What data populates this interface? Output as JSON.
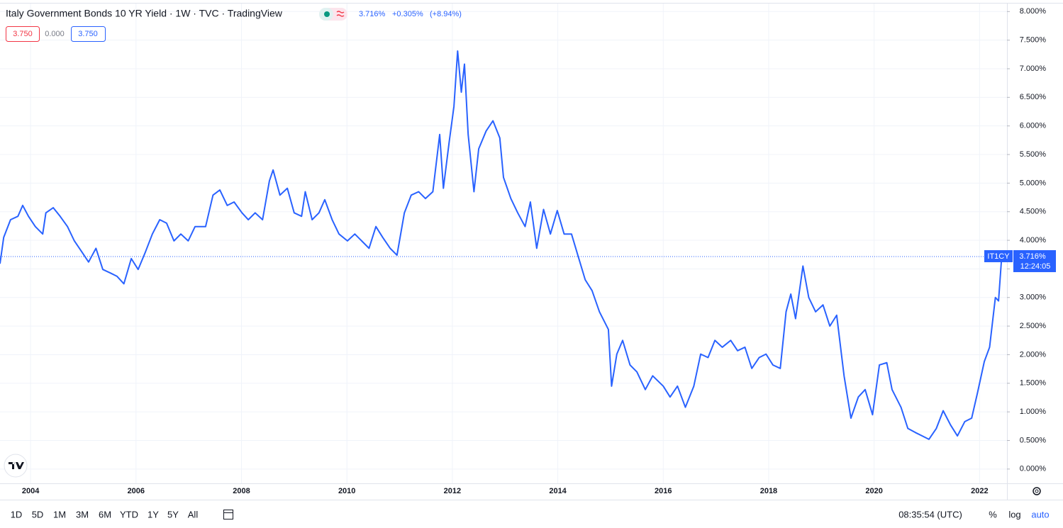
{
  "header": {
    "title": "Italy Government Bonds 10 YR Yield · 1W · TVC · TradingView",
    "last": "3.716%",
    "change": "+0.305%",
    "change_pct": "(+8.94%)",
    "inputs": [
      "3.750",
      "0.000",
      "3.750"
    ]
  },
  "chart_data": {
    "type": "line",
    "x": [
      2003.42,
      2003.49,
      2003.62,
      2003.76,
      2003.85,
      2003.96,
      2004.09,
      2004.23,
      2004.29,
      2004.43,
      2004.56,
      2004.7,
      2004.83,
      2004.97,
      2005.1,
      2005.24,
      2005.37,
      2005.51,
      2005.64,
      2005.77,
      2005.91,
      2006.04,
      2006.18,
      2006.31,
      2006.45,
      2006.58,
      2006.72,
      2006.85,
      2006.99,
      2007.12,
      2007.32,
      2007.46,
      2007.59,
      2007.73,
      2007.86,
      2008.01,
      2008.13,
      2008.26,
      2008.4,
      2008.53,
      2008.6,
      2008.73,
      2008.87,
      2009.0,
      2009.14,
      2009.21,
      2009.34,
      2009.47,
      2009.58,
      2009.72,
      2009.85,
      2010.01,
      2010.15,
      2010.28,
      2010.42,
      2010.55,
      2010.68,
      2010.82,
      2010.95,
      2011.09,
      2011.22,
      2011.36,
      2011.49,
      2011.63,
      2011.76,
      2011.83,
      2011.94,
      2012.03,
      2012.1,
      2012.17,
      2012.23,
      2012.3,
      2012.41,
      2012.5,
      2012.64,
      2012.77,
      2012.9,
      2012.97,
      2013.11,
      2013.24,
      2013.38,
      2013.48,
      2013.6,
      2013.73,
      2013.86,
      2013.99,
      2014.12,
      2014.26,
      2014.38,
      2014.52,
      2014.65,
      2014.79,
      2014.96,
      2015.02,
      2015.12,
      2015.23,
      2015.37,
      2015.5,
      2015.66,
      2015.8,
      2016.0,
      2016.13,
      2016.27,
      2016.42,
      2016.58,
      2016.71,
      2016.85,
      2016.98,
      2017.12,
      2017.28,
      2017.41,
      2017.55,
      2017.68,
      2017.82,
      2017.95,
      2018.08,
      2018.22,
      2018.33,
      2018.42,
      2018.51,
      2018.65,
      2018.76,
      2018.89,
      2019.03,
      2019.16,
      2019.29,
      2019.43,
      2019.56,
      2019.7,
      2019.83,
      2019.97,
      2020.1,
      2020.24,
      2020.34,
      2020.51,
      2020.64,
      2020.78,
      2020.91,
      2021.04,
      2021.18,
      2021.31,
      2021.45,
      2021.58,
      2021.72,
      2021.85,
      2021.96,
      2022.09,
      2022.19,
      2022.3,
      2022.36,
      2022.42
    ],
    "series": [
      {
        "name": "IT1CY",
        "color": "#2962ff",
        "values": [
          3.59,
          4.05,
          4.36,
          4.42,
          4.61,
          4.42,
          4.24,
          4.11,
          4.48,
          4.57,
          4.42,
          4.24,
          3.99,
          3.8,
          3.62,
          3.86,
          3.49,
          3.43,
          3.37,
          3.24,
          3.68,
          3.49,
          3.8,
          4.11,
          4.36,
          4.3,
          3.99,
          4.11,
          3.99,
          4.24,
          4.24,
          4.79,
          4.88,
          4.61,
          4.67,
          4.48,
          4.36,
          4.48,
          4.36,
          5.04,
          5.23,
          4.79,
          4.91,
          4.48,
          4.42,
          4.85,
          4.36,
          4.48,
          4.71,
          4.36,
          4.11,
          3.99,
          4.11,
          3.99,
          3.86,
          4.24,
          4.05,
          3.86,
          3.74,
          4.48,
          4.79,
          4.85,
          4.73,
          4.85,
          5.85,
          4.91,
          5.72,
          6.34,
          7.31,
          6.59,
          7.08,
          5.85,
          4.85,
          5.6,
          5.91,
          6.09,
          5.79,
          5.1,
          4.73,
          4.48,
          4.24,
          4.67,
          3.86,
          4.54,
          4.11,
          4.52,
          4.11,
          4.11,
          3.74,
          3.31,
          3.12,
          2.75,
          2.44,
          1.45,
          2.01,
          2.25,
          1.82,
          1.7,
          1.39,
          1.63,
          1.45,
          1.26,
          1.45,
          1.08,
          1.45,
          2.01,
          1.95,
          2.25,
          2.13,
          2.25,
          2.07,
          2.13,
          1.76,
          1.95,
          2.01,
          1.82,
          1.76,
          2.75,
          3.06,
          2.63,
          3.55,
          3.0,
          2.75,
          2.87,
          2.5,
          2.69,
          1.63,
          0.89,
          1.26,
          1.39,
          0.95,
          1.82,
          1.86,
          1.39,
          1.08,
          0.71,
          0.64,
          0.58,
          0.52,
          0.71,
          1.02,
          0.77,
          0.58,
          0.83,
          0.89,
          1.33,
          1.88,
          2.13,
          3.0,
          2.94,
          3.716
        ]
      }
    ],
    "price_label": "3.716%",
    "countdown": "12:24:05",
    "xlim": [
      2003.42,
      2022.52
    ],
    "xticks": [
      2004,
      2006,
      2008,
      2010,
      2012,
      2014,
      2016,
      2018,
      2020,
      2022
    ],
    "ylim": [
      -0.25,
      8.14
    ],
    "yticks": [
      {
        "value": 0,
        "label": "0.000%"
      },
      {
        "value": 0.5,
        "label": "0.500%"
      },
      {
        "value": 1,
        "label": "1.000%"
      },
      {
        "value": 1.5,
        "label": "1.500%"
      },
      {
        "value": 2,
        "label": "2.000%"
      },
      {
        "value": 2.5,
        "label": "2.500%"
      },
      {
        "value": 3,
        "label": "3.000%"
      },
      {
        "value": 3.5,
        "label": "3.500%"
      },
      {
        "value": 4,
        "label": "4.000%"
      },
      {
        "value": 4.5,
        "label": "4.500%"
      },
      {
        "value": 5,
        "label": "5.000%"
      },
      {
        "value": 5.5,
        "label": "5.500%"
      },
      {
        "value": 6,
        "label": "6.000%"
      },
      {
        "value": 6.5,
        "label": "6.500%"
      },
      {
        "value": 7,
        "label": "7.000%"
      },
      {
        "value": 7.5,
        "label": "7.500%"
      },
      {
        "value": 8,
        "label": "8.000%"
      }
    ],
    "grid": true
  },
  "toolbar": {
    "ranges": [
      "1D",
      "5D",
      "1M",
      "3M",
      "6M",
      "YTD",
      "1Y",
      "5Y",
      "All"
    ],
    "time": "08:35:54 (UTC)",
    "options": [
      "%",
      "log",
      "auto"
    ]
  }
}
